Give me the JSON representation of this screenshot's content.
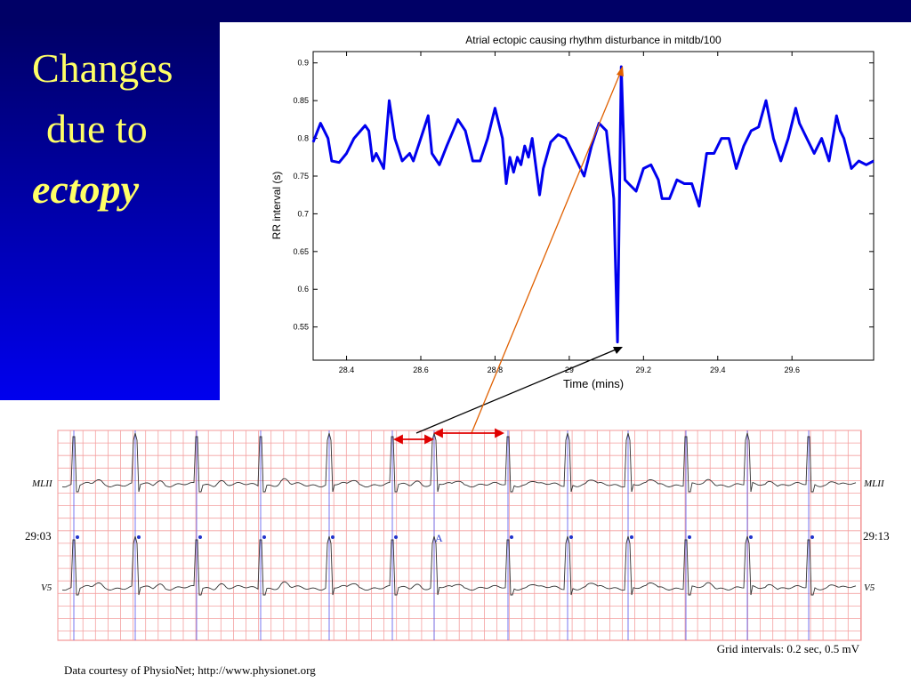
{
  "slide": {
    "title_lines": [
      "Changes",
      "due to",
      "ectopy"
    ],
    "strip": {
      "lead_top": "MLII",
      "lead_bottom": "V5",
      "time_start": "29:03",
      "time_end": "29:13",
      "beat_mark": "A",
      "grid_note": "Grid intervals: 0.2 sec, 0.5 mV"
    },
    "footer": "Data courtesy of PhysioNet; http://www.physionet.org"
  },
  "chart_data": {
    "type": "line",
    "title": "Atrial ectopic causing rhythm disturbance in mitdb/100",
    "xlabel": "Time (mins)",
    "ylabel": "RR interval (s)",
    "color": "#0000ee",
    "x": [
      28.31,
      28.33,
      28.35,
      28.36,
      28.38,
      28.4,
      28.42,
      28.45,
      28.46,
      28.47,
      28.48,
      28.5,
      28.515,
      28.53,
      28.55,
      28.57,
      28.58,
      28.6,
      28.62,
      28.63,
      28.65,
      28.67,
      28.7,
      28.72,
      28.74,
      28.76,
      28.78,
      28.8,
      28.82,
      28.83,
      28.84,
      28.85,
      28.86,
      28.87,
      28.88,
      28.89,
      28.9,
      28.92,
      28.93,
      28.95,
      28.97,
      28.99,
      29.01,
      29.04,
      29.06,
      29.08,
      29.1,
      29.12,
      29.13,
      29.14,
      29.15,
      29.16,
      29.18,
      29.2,
      29.22,
      29.24,
      29.25,
      29.27,
      29.29,
      29.31,
      29.33,
      29.35,
      29.37,
      29.39,
      29.41,
      29.43,
      29.45,
      29.47,
      29.49,
      29.51,
      29.53,
      29.55,
      29.57,
      29.59,
      29.61,
      29.62,
      29.64,
      29.66,
      29.68,
      29.7,
      29.72,
      29.73,
      29.74,
      29.76,
      29.78,
      29.8,
      29.82
    ],
    "values": [
      0.795,
      0.82,
      0.8,
      0.77,
      0.768,
      0.78,
      0.8,
      0.817,
      0.81,
      0.77,
      0.78,
      0.76,
      0.85,
      0.8,
      0.77,
      0.78,
      0.77,
      0.8,
      0.83,
      0.78,
      0.765,
      0.79,
      0.825,
      0.81,
      0.77,
      0.77,
      0.8,
      0.84,
      0.8,
      0.74,
      0.775,
      0.755,
      0.775,
      0.765,
      0.79,
      0.775,
      0.8,
      0.725,
      0.76,
      0.795,
      0.805,
      0.8,
      0.78,
      0.75,
      0.79,
      0.82,
      0.81,
      0.72,
      0.53,
      0.895,
      0.745,
      0.74,
      0.73,
      0.76,
      0.765,
      0.745,
      0.72,
      0.72,
      0.745,
      0.74,
      0.74,
      0.71,
      0.78,
      0.78,
      0.8,
      0.8,
      0.76,
      0.79,
      0.81,
      0.815,
      0.85,
      0.8,
      0.77,
      0.8,
      0.84,
      0.82,
      0.8,
      0.78,
      0.8,
      0.77,
      0.83,
      0.81,
      0.8,
      0.76,
      0.77,
      0.765,
      0.77
    ],
    "xlim": [
      28.31,
      29.82
    ],
    "ylim": [
      0.506,
      0.915
    ],
    "xticks": [
      28.4,
      28.6,
      28.8,
      29,
      29.2,
      29.4,
      29.6
    ],
    "yticks": [
      0.55,
      0.6,
      0.65,
      0.7,
      0.75,
      0.8,
      0.85,
      0.9
    ]
  }
}
